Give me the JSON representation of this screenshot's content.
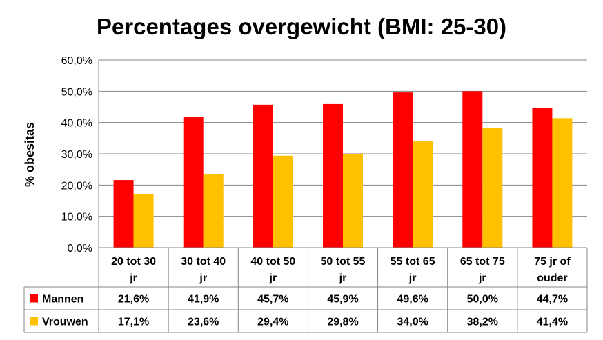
{
  "chart_data": {
    "type": "bar",
    "title": "Percentages overgewicht (BMI: 25-30)",
    "ylabel": "% obesitas",
    "xlabel": "",
    "ylim": [
      0,
      60
    ],
    "yticks": [
      "0,0%",
      "10,0%",
      "20,0%",
      "30,0%",
      "40,0%",
      "50,0%",
      "60,0%"
    ],
    "grid": true,
    "legend": "data-table",
    "categories": [
      [
        "20 tot 30",
        "jr"
      ],
      [
        "30 tot 40",
        "jr"
      ],
      [
        "40 tot 50",
        "jr"
      ],
      [
        "50 tot 55",
        "jr"
      ],
      [
        "55 tot 65",
        "jr"
      ],
      [
        "65 tot 75",
        "jr"
      ],
      [
        "75 jr of",
        "ouder"
      ]
    ],
    "series": [
      {
        "name": "Mannen",
        "color": "#ff0000",
        "values": [
          21.6,
          41.9,
          45.7,
          45.9,
          49.6,
          50.0,
          44.7
        ],
        "labels": [
          "21,6%",
          "41,9%",
          "45,7%",
          "45,9%",
          "49,6%",
          "50,0%",
          "44,7%"
        ]
      },
      {
        "name": "Vrouwen",
        "color": "#ffc000",
        "values": [
          17.1,
          23.6,
          29.4,
          29.8,
          34.0,
          38.2,
          41.4
        ],
        "labels": [
          "17,1%",
          "23,6%",
          "29,4%",
          "29,8%",
          "34,0%",
          "38,2%",
          "41,4%"
        ]
      }
    ]
  }
}
